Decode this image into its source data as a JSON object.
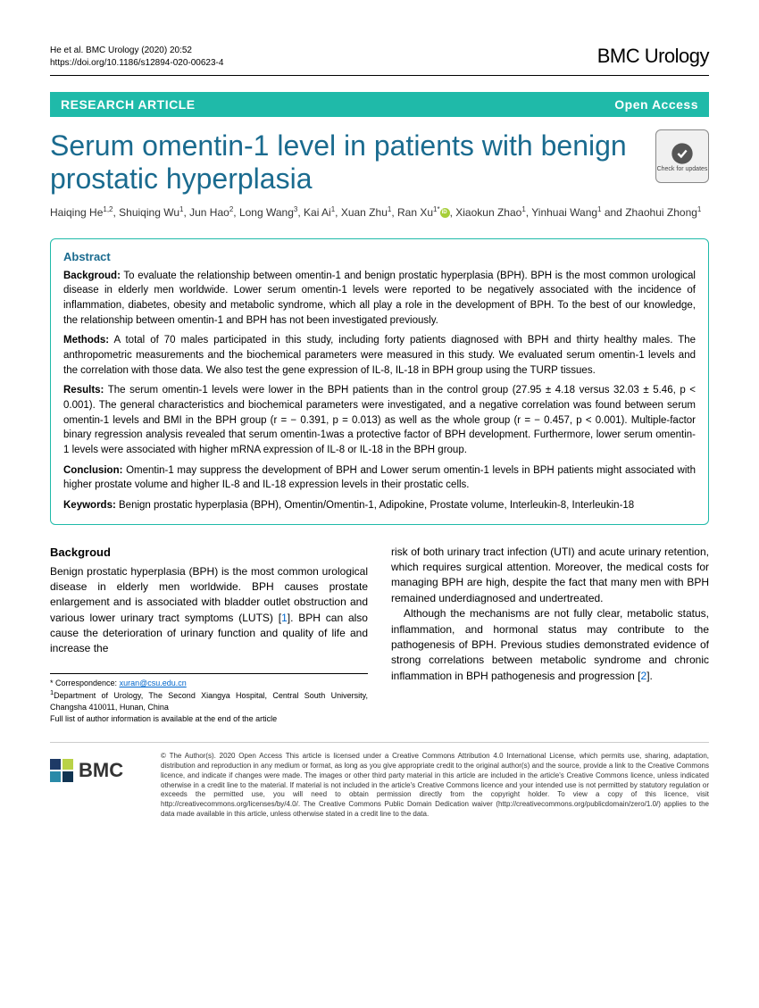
{
  "header": {
    "citation": "He et al. BMC Urology          (2020) 20:52",
    "doi": "https://doi.org/10.1186/s12894-020-00623-4",
    "journal": "BMC Urology"
  },
  "banner": {
    "left": "RESEARCH ARTICLE",
    "right": "Open Access"
  },
  "title": "Serum omentin-1 level in patients with benign prostatic hyperplasia",
  "check_updates": "Check for updates",
  "authors_html": "Haiqing He<sup>1,2</sup>, Shuiqing Wu<sup>1</sup>, Jun Hao<sup>2</sup>, Long Wang<sup>3</sup>, Kai Ai<sup>1</sup>, Xuan Zhu<sup>1</sup>, Ran Xu<sup>1*</sup><span class='orcid'></span>, Xiaokun Zhao<sup>1</sup>, Yinhuai Wang<sup>1</sup> and Zhaohui Zhong<sup>1</sup>",
  "abstract": {
    "heading": "Abstract",
    "background_label": "Backgroud:",
    "background": "To evaluate the relationship between omentin-1 and benign prostatic hyperplasia (BPH). BPH is the most common urological disease in elderly men worldwide. Lower serum omentin-1 levels were reported to be negatively associated with the incidence of inflammation, diabetes, obesity and metabolic syndrome, which all play a role in the development of BPH. To the best of our knowledge, the relationship between omentin-1 and BPH has not been investigated previously.",
    "methods_label": "Methods:",
    "methods": "A total of 70 males participated in this study, including forty patients diagnosed with BPH and thirty healthy males. The anthropometric measurements and the biochemical parameters were measured in this study. We evaluated serum omentin-1 levels and the correlation with those data. We also test the gene expression of IL-8, IL-18 in BPH group using the TURP tissues.",
    "results_label": "Results:",
    "results": "The serum omentin-1 levels were lower in the BPH patients than in the control group (27.95 ± 4.18 versus 32.03 ± 5.46, p < 0.001). The general characteristics and biochemical parameters were investigated, and a negative correlation was found between serum omentin-1 levels and BMI in the BPH group (r = − 0.391, p = 0.013) as well as the whole group (r = − 0.457, p < 0.001). Multiple-factor binary regression analysis revealed that serum omentin-1was a protective factor of BPH development. Furthermore, lower serum omentin-1 levels were associated with higher mRNA expression of IL-8 or IL-18 in the BPH group.",
    "conclusion_label": "Conclusion:",
    "conclusion": "Omentin-1 may suppress the development of BPH and Lower serum omentin-1 levels in BPH patients might associated with higher prostate volume and higher IL-8 and IL-18 expression levels in their prostatic cells.",
    "keywords_label": "Keywords:",
    "keywords": "Benign prostatic hyperplasia (BPH), Omentin/Omentin-1, Adipokine, Prostate volume, Interleukin-8, Interleukin-18"
  },
  "body": {
    "section_heading": "Backgroud",
    "col1_p1": "Benign prostatic hyperplasia (BPH) is the most common urological disease in elderly men worldwide. BPH causes prostate enlargement and is associated with bladder outlet obstruction and various lower urinary tract symptoms (LUTS) [",
    "col1_ref1": "1",
    "col1_p1b": "]. BPH can also cause the deterioration of urinary function and quality of life and increase the",
    "col2_p1": "risk of both urinary tract infection (UTI) and acute urinary retention, which requires surgical attention. Moreover, the medical costs for managing BPH are high, despite the fact that many men with BPH remained underdiagnosed and undertreated.",
    "col2_p2a": "Although the mechanisms are not fully clear, metabolic status, inflammation, and hormonal status may contribute to the pathogenesis of BPH. Previous studies demonstrated evidence of strong correlations between metabolic syndrome and chronic inflammation in BPH pathogenesis and progression [",
    "col2_ref2": "2",
    "col2_p2b": "]."
  },
  "correspondence": {
    "label": "* Correspondence:",
    "email": "xuran@csu.edu.cn",
    "affiliation": "Department of Urology, The Second Xiangya Hospital, Central South University, Changsha 410011, Hunan, China",
    "note": "Full list of author information is available at the end of the article",
    "aff_sup": "1"
  },
  "footer": {
    "logo_text": "BMC",
    "license": "© The Author(s). 2020 Open Access This article is licensed under a Creative Commons Attribution 4.0 International License, which permits use, sharing, adaptation, distribution and reproduction in any medium or format, as long as you give appropriate credit to the original author(s) and the source, provide a link to the Creative Commons licence, and indicate if changes were made. The images or other third party material in this article are included in the article's Creative Commons licence, unless indicated otherwise in a credit line to the material. If material is not included in the article's Creative Commons licence and your intended use is not permitted by statutory regulation or exceeds the permitted use, you will need to obtain permission directly from the copyright holder. To view a copy of this licence, visit http://creativecommons.org/licenses/by/4.0/. The Creative Commons Public Domain Dedication waiver (http://creativecommons.org/publicdomain/zero/1.0/) applies to the data made available in this article, unless otherwise stated in a credit line to the data."
  }
}
